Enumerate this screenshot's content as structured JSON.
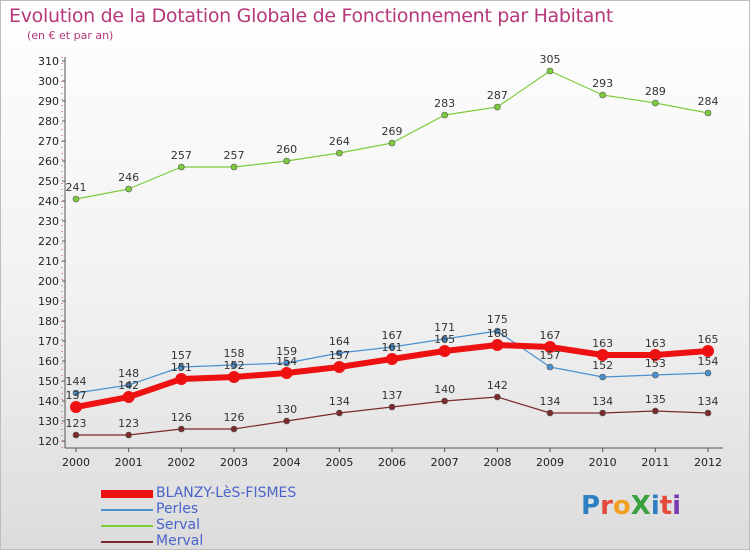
{
  "header": {
    "title": "Evolution de la Dotation Globale de Fonctionnement par Habitant",
    "subtitle": "(en € et par an)"
  },
  "logo": {
    "text": "ProXiti",
    "colors": [
      "#2e7fc1",
      "#e34a3a",
      "#f2a022",
      "#3aa040",
      "#2e7fc1",
      "#e34a3a",
      "#7a3ab0"
    ]
  },
  "chart_data": {
    "type": "line",
    "title": "Evolution de la Dotation Globale de Fonctionnement par Habitant",
    "subtitle": "(en € et par an)",
    "xlabel": "",
    "ylabel": "",
    "x": [
      "2000",
      "2001",
      "2002",
      "2003",
      "2004",
      "2005",
      "2006",
      "2007",
      "2008",
      "2009",
      "2010",
      "2011",
      "2012"
    ],
    "ylim": [
      120,
      310
    ],
    "yticks": [
      120,
      130,
      140,
      150,
      160,
      170,
      180,
      190,
      200,
      210,
      220,
      230,
      240,
      250,
      260,
      270,
      280,
      290,
      300,
      310
    ],
    "grid": false,
    "legend_position": "bottom-left",
    "series": [
      {
        "name": "BLANZY-LèS-FISMES",
        "color": "#ee1111",
        "values": [
          137,
          142,
          151,
          152,
          154,
          157,
          161,
          165,
          168,
          167,
          163,
          163,
          165
        ]
      },
      {
        "name": "Perles",
        "color": "#4a90d0",
        "values": [
          144,
          148,
          157,
          158,
          159,
          164,
          167,
          171,
          175,
          157,
          152,
          153,
          154
        ]
      },
      {
        "name": "Serval",
        "color": "#7dcc3c",
        "values": [
          241,
          246,
          257,
          257,
          260,
          264,
          269,
          283,
          287,
          305,
          293,
          289,
          284
        ]
      },
      {
        "name": "Merval",
        "color": "#7a2a2a",
        "values": [
          123,
          123,
          126,
          126,
          130,
          134,
          137,
          140,
          142,
          134,
          134,
          135,
          134
        ]
      }
    ],
    "data_labels": {
      "BLANZY-LèS-FISMES": [
        "137",
        "142",
        "151",
        "152",
        "154",
        "157",
        "161",
        "165",
        "168",
        "167",
        "163",
        "163",
        "165"
      ],
      "Perles": [
        "144",
        "148",
        "157",
        "158",
        "159",
        "164",
        "167",
        "171",
        "175",
        "157",
        "152",
        "153",
        "154"
      ],
      "Serval": [
        "241",
        "246",
        "257",
        "257",
        "260",
        "264",
        "269",
        "283",
        "287",
        "305",
        "293",
        "289",
        "284"
      ],
      "Merval": [
        "123",
        "123",
        "126",
        "126",
        "130",
        "134",
        "137",
        "140",
        "142",
        "134",
        "134",
        "135",
        "134"
      ]
    }
  }
}
